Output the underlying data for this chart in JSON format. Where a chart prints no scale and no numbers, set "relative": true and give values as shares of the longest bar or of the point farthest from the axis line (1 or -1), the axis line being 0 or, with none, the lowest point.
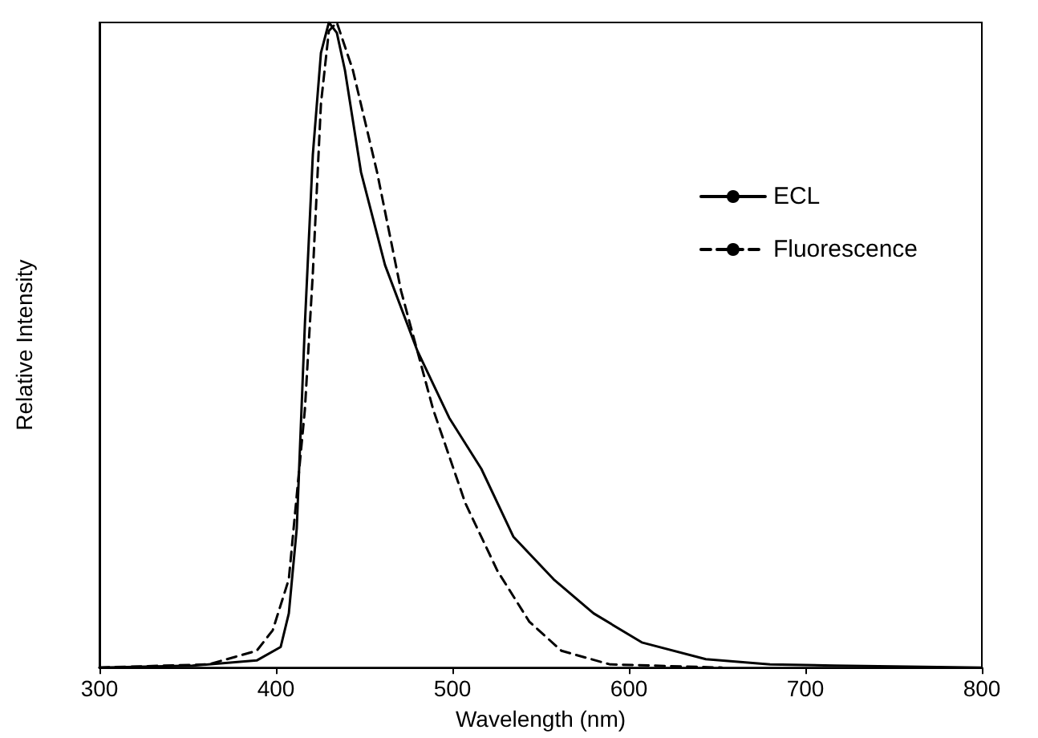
{
  "chart_data": {
    "type": "line",
    "xlabel": "Wavelength (nm)",
    "ylabel": "Relative Intensity",
    "relative": true,
    "xlim": [
      300,
      800
    ],
    "xticks": [
      300,
      400,
      500,
      600,
      700,
      800
    ],
    "tick_labels": "x",
    "legend": "top right",
    "marker": "none",
    "grid": false,
    "series": [
      {
        "name": "ECL",
        "color": "#000000",
        "line_style": "solid",
        "x": [
          300,
          352.7,
          389.1,
          402.7,
          407.3,
          411.8,
          416.4,
          420.9,
          425.5,
          430,
          434.5,
          439.1,
          448.2,
          461.8,
          480,
          498.2,
          516.4,
          534.5,
          557.3,
          580,
          607.3,
          643.6,
          680,
          716.4,
          800
        ],
        "values": [
          0,
          0.003,
          0.011,
          0.032,
          0.084,
          0.216,
          0.532,
          0.795,
          0.953,
          1,
          0.984,
          0.926,
          0.768,
          0.624,
          0.492,
          0.387,
          0.308,
          0.203,
          0.137,
          0.084,
          0.039,
          0.013,
          0.005,
          0.003,
          0
        ]
      },
      {
        "name": "Fluorescence",
        "color": "#000000",
        "line_style": "dashed",
        "x": [
          300,
          361.8,
          389.1,
          398.2,
          407.3,
          416.4,
          420.9,
          425.5,
          430,
          434.5,
          443.6,
          457.3,
          470.9,
          489.1,
          507.3,
          525.5,
          543.6,
          561.8,
          589.1,
          652.7
        ],
        "values": [
          0,
          0.005,
          0.026,
          0.058,
          0.137,
          0.4,
          0.611,
          0.874,
          0.987,
          1,
          0.926,
          0.768,
          0.584,
          0.4,
          0.255,
          0.15,
          0.071,
          0.026,
          0.005,
          0
        ]
      }
    ]
  }
}
